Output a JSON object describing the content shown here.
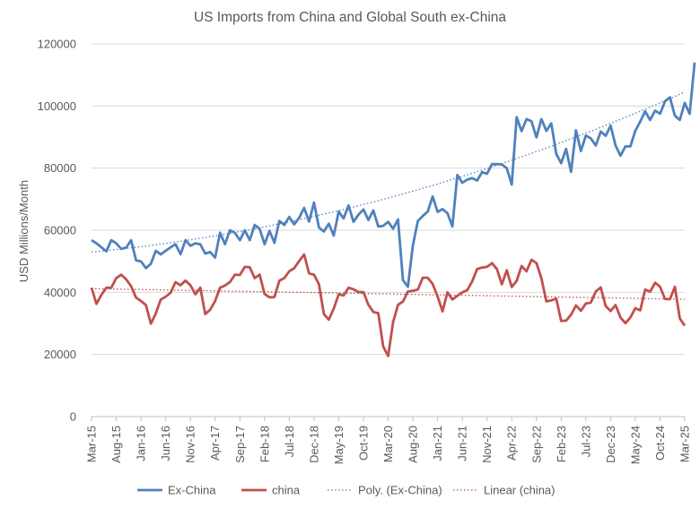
{
  "chart_data": {
    "type": "line",
    "title": "US Imports from China and Global South ex-China",
    "ylabel": "USD Millions/Month",
    "xlabel": "",
    "ylim": [
      0,
      120000
    ],
    "yticks": [
      0,
      20000,
      40000,
      60000,
      80000,
      100000,
      120000
    ],
    "xlim": [
      "Mar-15",
      "Mar-25"
    ],
    "x_tick_labels": [
      "Mar-15",
      "Aug-15",
      "Jan-16",
      "Jun-16",
      "Nov-16",
      "Apr-17",
      "Sep-17",
      "Feb-18",
      "Jul-18",
      "Dec-18",
      "May-19",
      "Oct-19",
      "Mar-20",
      "Aug-20",
      "Jan-21",
      "Jun-21",
      "Nov-21",
      "Apr-22",
      "Sep-22",
      "Feb-23",
      "Jul-23",
      "Dec-23",
      "May-24",
      "Oct-24",
      "Mar-25"
    ],
    "grid": "horizontal",
    "legend_position": "bottom",
    "series": [
      {
        "name": "Ex-China",
        "color": "#4f81bd",
        "style": "solid",
        "values": [
          56800,
          55800,
          54500,
          53200,
          56800,
          55800,
          54000,
          54400,
          56800,
          50300,
          50000,
          47800,
          49200,
          53400,
          52200,
          53400,
          54500,
          55500,
          52300,
          56800,
          55000,
          55800,
          55500,
          52500,
          53000,
          51200,
          59200,
          55500,
          60000,
          59200,
          56800,
          60000,
          56800,
          61700,
          60500,
          55500,
          59800,
          56000,
          63000,
          61700,
          64300,
          61900,
          64000,
          67200,
          62800,
          68900,
          60900,
          59600,
          62100,
          58300,
          66000,
          63800,
          68000,
          62700,
          65000,
          66700,
          63300,
          66400,
          61200,
          61400,
          62700,
          60500,
          63500,
          44000,
          41800,
          55000,
          63000,
          64600,
          66000,
          70900,
          65900,
          66800,
          65500,
          61200,
          77800,
          75300,
          76300,
          76800,
          76000,
          78700,
          78200,
          81300,
          81300,
          81200,
          80000,
          74700,
          96400,
          91900,
          95800,
          95100,
          89900,
          95800,
          92000,
          94400,
          84600,
          81600,
          86200,
          78800,
          92200,
          85500,
          90500,
          89600,
          87300,
          91800,
          90400,
          93700,
          87300,
          84000,
          87000,
          87000,
          92000,
          95000,
          98300,
          95500,
          98500,
          97500,
          101500,
          102800,
          96900,
          95500,
          101000,
          97500,
          114000
        ]
      },
      {
        "name": "china",
        "color": "#c0504d",
        "style": "solid",
        "values": [
          41500,
          36300,
          39200,
          41500,
          41500,
          44600,
          45700,
          44200,
          42000,
          38300,
          37200,
          35900,
          29900,
          33200,
          37700,
          38600,
          39900,
          43300,
          42300,
          43800,
          42300,
          39400,
          41500,
          33000,
          34400,
          37200,
          41500,
          42200,
          43300,
          45700,
          45600,
          48200,
          48100,
          44600,
          45700,
          39500,
          38400,
          38500,
          43800,
          44600,
          46800,
          47800,
          50100,
          52200,
          46100,
          45700,
          42600,
          33000,
          31200,
          34800,
          39400,
          39000,
          41500,
          41000,
          40100,
          40100,
          36000,
          33700,
          33300,
          22600,
          19500,
          30400,
          36000,
          37000,
          40300,
          40500,
          40900,
          44700,
          44700,
          42700,
          38700,
          33900,
          40000,
          37700,
          38900,
          40000,
          40700,
          43500,
          47500,
          48000,
          48200,
          49400,
          47500,
          42600,
          47100,
          41700,
          43700,
          48500,
          46800,
          50500,
          49400,
          44500,
          37100,
          37400,
          38000,
          30800,
          30900,
          32800,
          35800,
          34100,
          36400,
          36700,
          40300,
          41600,
          35600,
          34000,
          35900,
          31900,
          30100,
          31900,
          34900,
          34200,
          40900,
          40200,
          43100,
          41800,
          37900,
          37800,
          41800,
          31600,
          29300
        ],
        "x_offset_months": 0
      },
      {
        "name": "Poly. (Ex-China)",
        "color": "#4f81bd",
        "style": "dotted",
        "fit": "polynomial",
        "endpoints": [
          53000,
          104500
        ]
      },
      {
        "name": "Linear (china)",
        "color": "#c0504d",
        "style": "dotted",
        "fit": "linear",
        "endpoints": [
          41200,
          37800
        ]
      }
    ]
  }
}
